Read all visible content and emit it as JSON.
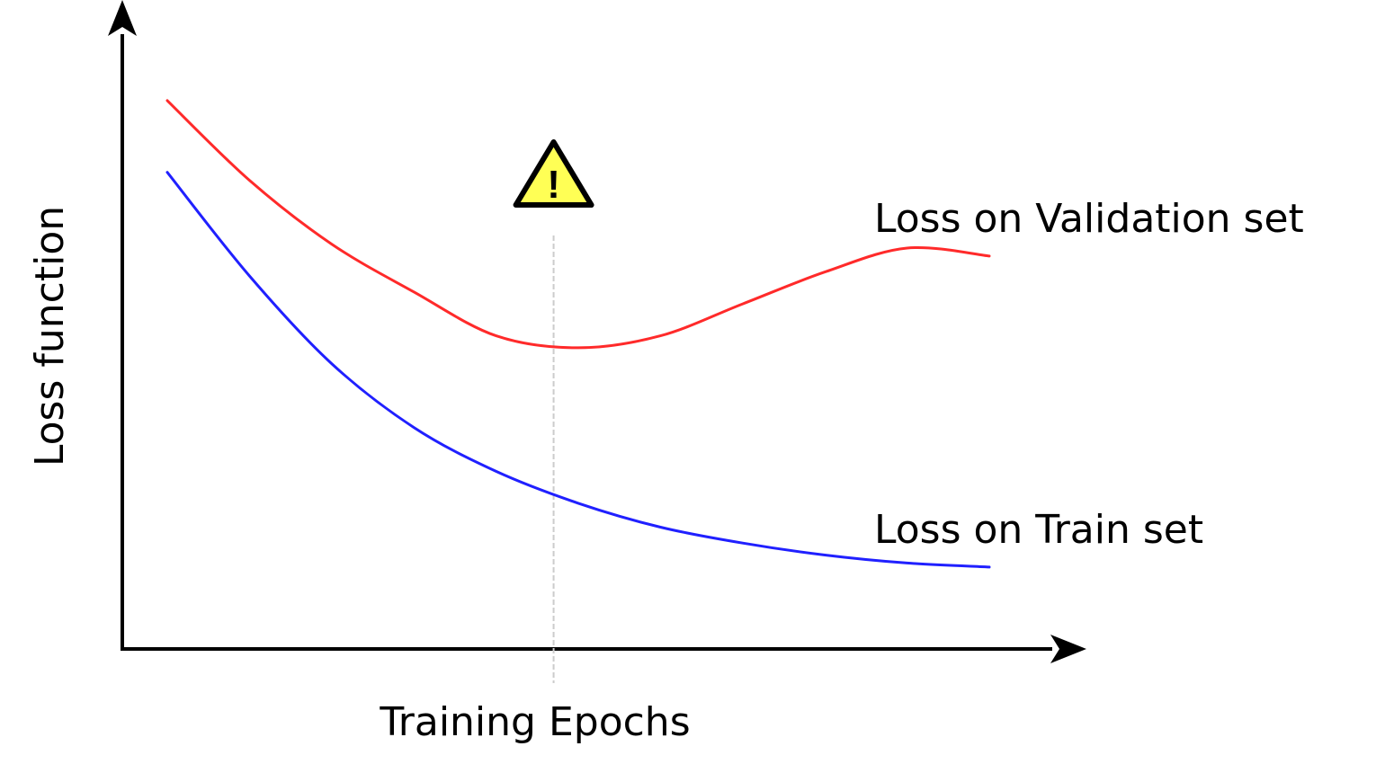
{
  "chart_data": {
    "type": "line",
    "title": "",
    "xlabel": "Training Epochs",
    "ylabel": "Loss function",
    "x_ticks": "none",
    "y_ticks": "none",
    "grid": false,
    "legend": "none (series labelled inline at right end of each curve)",
    "x": [
      0,
      1,
      2,
      3,
      4,
      5,
      6,
      7,
      8,
      9,
      10
    ],
    "series": [
      {
        "name": "Loss on Validation set",
        "color": "#ff2a2a",
        "values": [
          6.9,
          5.9,
          5.1,
          4.5,
          3.95,
          3.8,
          3.95,
          4.35,
          4.75,
          5.05,
          4.95
        ]
      },
      {
        "name": "Loss on Train set",
        "color": "#2020ff",
        "values": [
          6.0,
          4.7,
          3.6,
          2.8,
          2.25,
          1.85,
          1.55,
          1.35,
          1.2,
          1.1,
          1.05
        ]
      }
    ],
    "annotations": [
      {
        "type": "vertical-dashed-line",
        "x": 4.7,
        "color": "#cccccc",
        "marker": "warning-icon",
        "marker_text": "!",
        "marker_fill": "#ffff55"
      }
    ],
    "axis_color": "#000000"
  }
}
